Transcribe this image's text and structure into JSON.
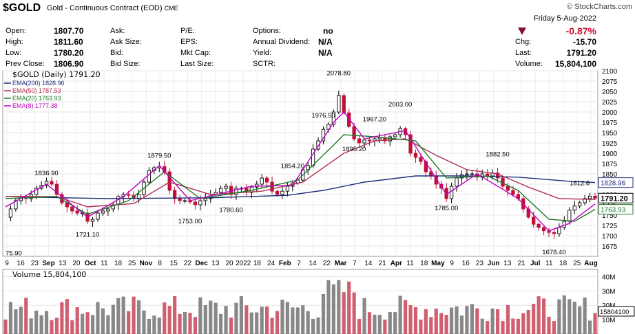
{
  "header": {
    "symbol": "$GOLD",
    "description": "Gold - Continuous Contract (EOD)",
    "exchange": "CME",
    "source": "© StockCharts.com",
    "date_line": "Friday  5-Aug-2022",
    "change_pct": "-0.87%",
    "change_color": "#c8102e",
    "down_color": "#8b1030"
  },
  "quote": {
    "open_label": "Open:",
    "open": "1807.70",
    "high_label": "High:",
    "high": "1811.60",
    "low_label": "Low:",
    "low": "1780.20",
    "prev_label": "Prev Close:",
    "prev": "1806.90",
    "ask_label": "Ask:",
    "asksize_label": "Ask Size:",
    "bid_label": "Bid:",
    "bidsize_label": "Bid Size:",
    "pe_label": "P/E:",
    "eps_label": "EPS:",
    "mktcap_label": "Mkt Cap:",
    "lastsize_label": "Last Size:",
    "options_label": "Options:",
    "options": "no",
    "div_label": "Annual Dividend:",
    "div": "N/A",
    "yield_label": "Yield:",
    "yield": "N/A",
    "sctr_label": "SCTR:",
    "chg_label": "Chg:",
    "chg": "-15.70",
    "last_label": "Last:",
    "last": "1791.20",
    "volume_label": "Volume:",
    "volume": "15,804,100"
  },
  "legend": {
    "main": "$GOLD (Daily) 1791.20",
    "ema200": "EMA(200) 1828.96",
    "ema50": "EMA(50) 1787.53",
    "ema20": "EMA(20) 1763.93",
    "ema8": "EMA(8) 1777.38",
    "volume": "Volume 15,804,100"
  },
  "chart_data": {
    "type": "candlestick",
    "title": "$GOLD (Daily) 1791.20",
    "ylim": [
      1650,
      2100
    ],
    "y_ticks": [
      1675,
      1700,
      1725,
      1750,
      1775,
      1800,
      1825,
      1850,
      1875,
      1900,
      1925,
      1950,
      1975,
      2000,
      2025,
      2050,
      2075,
      2100
    ],
    "x_ticks": [
      "9",
      "16",
      "23",
      "Sep",
      "13",
      "20",
      "Oct",
      "11",
      "18",
      "25",
      "Nov",
      "8",
      "15",
      "22",
      "Dec",
      "13",
      "20",
      "2022",
      "18",
      "24",
      "Feb",
      "7",
      "14",
      "22",
      "Mar",
      "7",
      "14",
      "21",
      "Apr",
      "11",
      "18",
      "May",
      "9",
      "16",
      "23",
      "Jun",
      "13",
      "21",
      "Jul",
      "11",
      "18",
      "25",
      "Aug"
    ],
    "annotations": [
      {
        "label": "75.90",
        "value": 1675.9
      },
      {
        "label": "1836.90",
        "value": 1836.9
      },
      {
        "label": "1721.10",
        "value": 1721.1
      },
      {
        "label": "1879.50",
        "value": 1879.5
      },
      {
        "label": "1753.00",
        "value": 1753.0
      },
      {
        "label": "1854.20",
        "value": 1854.2
      },
      {
        "label": "1780.60",
        "value": 1780.6
      },
      {
        "label": "1976.50",
        "value": 1976.5
      },
      {
        "label": "2078.80",
        "value": 2078.8
      },
      {
        "label": "1895.20",
        "value": 1895.2
      },
      {
        "label": "1967.20",
        "value": 1967.2
      },
      {
        "label": "2003.00",
        "value": 2003.0
      },
      {
        "label": "1785.00",
        "value": 1785.0
      },
      {
        "label": "1882.50",
        "value": 1882.5
      },
      {
        "label": "1812.6",
        "value": 1812.6
      },
      {
        "label": "1678.40",
        "value": 1678.4
      }
    ],
    "close_path": [
      [
        0,
        1745
      ],
      [
        1,
        1765
      ],
      [
        2,
        1785
      ],
      [
        3,
        1792
      ],
      [
        4,
        1790
      ],
      [
        5,
        1800
      ],
      [
        6,
        1815
      ],
      [
        7,
        1822
      ],
      [
        8,
        1832
      ],
      [
        9,
        1825
      ],
      [
        10,
        1800
      ],
      [
        11,
        1780
      ],
      [
        12,
        1770
      ],
      [
        13,
        1760
      ],
      [
        14,
        1755
      ],
      [
        15,
        1755
      ],
      [
        16,
        1735
      ],
      [
        17,
        1740
      ],
      [
        18,
        1755
      ],
      [
        19,
        1760
      ],
      [
        20,
        1765
      ],
      [
        21,
        1775
      ],
      [
        22,
        1795
      ],
      [
        23,
        1800
      ],
      [
        24,
        1798
      ],
      [
        25,
        1790
      ],
      [
        26,
        1800
      ],
      [
        27,
        1830
      ],
      [
        28,
        1858
      ],
      [
        29,
        1865
      ],
      [
        30,
        1868
      ],
      [
        31,
        1855
      ],
      [
        32,
        1810
      ],
      [
        33,
        1790
      ],
      [
        34,
        1785
      ],
      [
        35,
        1785
      ],
      [
        36,
        1782
      ],
      [
        37,
        1775
      ],
      [
        38,
        1785
      ],
      [
        39,
        1790
      ],
      [
        40,
        1800
      ],
      [
        41,
        1805
      ],
      [
        42,
        1815
      ],
      [
        43,
        1820
      ],
      [
        44,
        1800
      ],
      [
        45,
        1815
      ],
      [
        46,
        1815
      ],
      [
        47,
        1805
      ],
      [
        48,
        1818
      ],
      [
        49,
        1825
      ],
      [
        50,
        1840
      ],
      [
        51,
        1830
      ],
      [
        52,
        1808
      ],
      [
        53,
        1800
      ],
      [
        54,
        1808
      ],
      [
        55,
        1820
      ],
      [
        56,
        1828
      ],
      [
        57,
        1835
      ],
      [
        58,
        1860
      ],
      [
        59,
        1870
      ],
      [
        60,
        1910
      ],
      [
        61,
        1930
      ],
      [
        62,
        1958
      ],
      [
        63,
        1970
      ],
      [
        64,
        2000
      ],
      [
        65,
        2040
      ],
      [
        66,
        1998
      ],
      [
        67,
        1965
      ],
      [
        68,
        1935
      ],
      [
        69,
        1925
      ],
      [
        70,
        1932
      ],
      [
        71,
        1930
      ],
      [
        72,
        1935
      ],
      [
        73,
        1938
      ],
      [
        74,
        1930
      ],
      [
        75,
        1940
      ],
      [
        76,
        1945
      ],
      [
        77,
        1960
      ],
      [
        78,
        1945
      ],
      [
        79,
        1900
      ],
      [
        80,
        1890
      ],
      [
        81,
        1880
      ],
      [
        82,
        1855
      ],
      [
        83,
        1845
      ],
      [
        84,
        1825
      ],
      [
        85,
        1815
      ],
      [
        86,
        1790
      ],
      [
        87,
        1820
      ],
      [
        88,
        1840
      ],
      [
        89,
        1848
      ],
      [
        90,
        1850
      ],
      [
        91,
        1850
      ],
      [
        92,
        1842
      ],
      [
        93,
        1850
      ],
      [
        94,
        1845
      ],
      [
        95,
        1852
      ],
      [
        96,
        1840
      ],
      [
        97,
        1820
      ],
      [
        98,
        1810
      ],
      [
        99,
        1800
      ],
      [
        100,
        1790
      ],
      [
        101,
        1765
      ],
      [
        102,
        1745
      ],
      [
        103,
        1728
      ],
      [
        104,
        1720
      ],
      [
        105,
        1712
      ],
      [
        106,
        1708
      ],
      [
        107,
        1705
      ],
      [
        108,
        1720
      ],
      [
        109,
        1735
      ],
      [
        110,
        1762
      ],
      [
        111,
        1772
      ],
      [
        112,
        1780
      ],
      [
        113,
        1790
      ],
      [
        114,
        1796
      ],
      [
        115,
        1791
      ]
    ],
    "series": [
      {
        "name": "EMA(200) 1828.96",
        "color": "#1c2a7a",
        "values": [
          [
            0,
            1795
          ],
          [
            20,
            1790
          ],
          [
            40,
            1792
          ],
          [
            55,
            1798
          ],
          [
            62,
            1810
          ],
          [
            70,
            1830
          ],
          [
            80,
            1845
          ],
          [
            90,
            1845
          ],
          [
            100,
            1842
          ],
          [
            110,
            1832
          ],
          [
            115,
            1829
          ]
        ]
      },
      {
        "name": "EMA(50) 1787.53",
        "color": "#b03050",
        "values": [
          [
            0,
            1795
          ],
          [
            10,
            1795
          ],
          [
            16,
            1770
          ],
          [
            25,
            1778
          ],
          [
            32,
            1830
          ],
          [
            40,
            1800
          ],
          [
            50,
            1808
          ],
          [
            58,
            1830
          ],
          [
            66,
            1900
          ],
          [
            72,
            1930
          ],
          [
            78,
            1935
          ],
          [
            84,
            1895
          ],
          [
            90,
            1860
          ],
          [
            96,
            1850
          ],
          [
            102,
            1818
          ],
          [
            108,
            1790
          ],
          [
            115,
            1788
          ]
        ]
      },
      {
        "name": "EMA(20) 1763.93",
        "color": "#1f7a2a",
        "values": [
          [
            0,
            1790
          ],
          [
            10,
            1795
          ],
          [
            16,
            1752
          ],
          [
            24,
            1785
          ],
          [
            31,
            1855
          ],
          [
            38,
            1790
          ],
          [
            48,
            1810
          ],
          [
            57,
            1835
          ],
          [
            64,
            1920
          ],
          [
            66,
            1945
          ],
          [
            72,
            1940
          ],
          [
            80,
            1930
          ],
          [
            86,
            1840
          ],
          [
            94,
            1845
          ],
          [
            100,
            1810
          ],
          [
            106,
            1740
          ],
          [
            111,
            1735
          ],
          [
            115,
            1764
          ]
        ]
      },
      {
        "name": "EMA(8) 1777.38",
        "color": "#c000c0",
        "values": [
          [
            0,
            1770
          ],
          [
            8,
            1825
          ],
          [
            16,
            1745
          ],
          [
            23,
            1795
          ],
          [
            30,
            1870
          ],
          [
            36,
            1785
          ],
          [
            48,
            1820
          ],
          [
            56,
            1822
          ],
          [
            64,
            1975
          ],
          [
            66,
            2000
          ],
          [
            70,
            1935
          ],
          [
            78,
            1955
          ],
          [
            86,
            1800
          ],
          [
            92,
            1850
          ],
          [
            100,
            1790
          ],
          [
            106,
            1712
          ],
          [
            110,
            1730
          ],
          [
            115,
            1777
          ]
        ]
      }
    ],
    "volume": {
      "last": "15,804,100",
      "ticks": [
        "40M",
        "30M",
        "20M",
        "10M"
      ],
      "last_label": "15804100",
      "ylim": [
        0,
        45000000
      ]
    },
    "legend_position": "top-left",
    "grid": true,
    "up_color": "#000000",
    "down_color": "#c0103a"
  }
}
